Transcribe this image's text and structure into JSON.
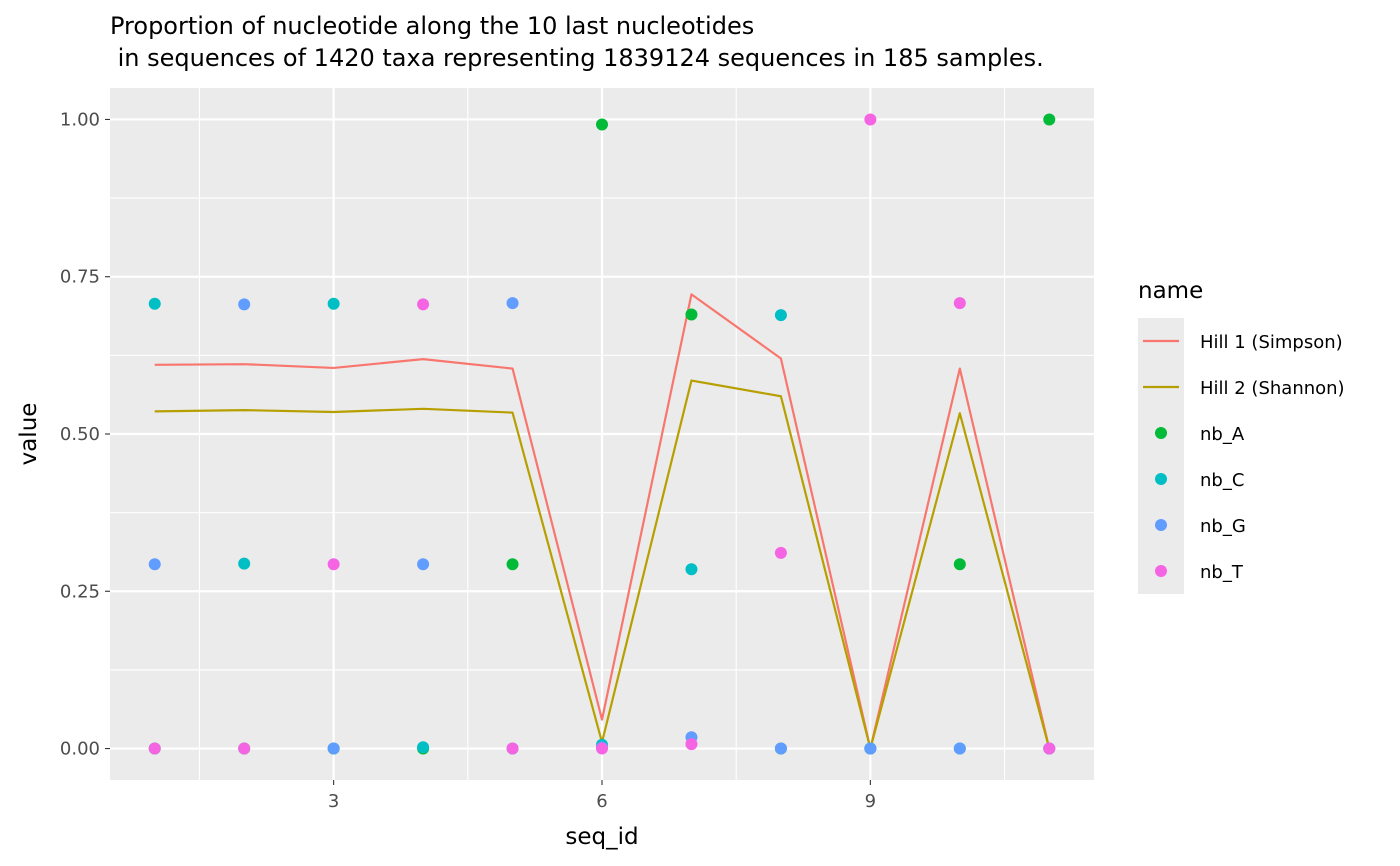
{
  "chart_data": {
    "type": "line",
    "title_line1": "Proportion of nucleotide along the 10 last nucleotides",
    "title_line2": " in sequences of 1420 taxa representing 1839124 sequences in 185 samples.",
    "xlabel": "seq_id",
    "ylabel": "value",
    "xlim": [
      0.5,
      11.5
    ],
    "ylim": [
      -0.05,
      1.05
    ],
    "x_ticks": [
      3,
      6,
      9
    ],
    "x_tick_labels": [
      "3",
      "6",
      "9"
    ],
    "y_ticks": [
      0,
      0.25,
      0.5,
      0.75,
      1.0
    ],
    "y_tick_labels": [
      "0.00",
      "0.25",
      "0.50",
      "0.75",
      "1.00"
    ],
    "grid": true,
    "legend_title": "name",
    "legend_position": "right",
    "x": [
      1,
      2,
      3,
      4,
      5,
      6,
      7,
      8,
      9,
      10,
      11
    ],
    "series": [
      {
        "name": "Hill 1 (Simpson)",
        "kind": "line",
        "color": "#F8766D",
        "values": [
          0.61,
          0.611,
          0.605,
          0.619,
          0.604,
          0.046,
          0.722,
          0.62,
          0.0,
          0.604,
          0.0
        ]
      },
      {
        "name": "Hill 2 (Shannon)",
        "kind": "line",
        "color": "#B79F00",
        "values": [
          0.536,
          0.538,
          0.535,
          0.54,
          0.534,
          0.01,
          0.585,
          0.56,
          0.0,
          0.533,
          0.0
        ]
      },
      {
        "name": "nb_A",
        "kind": "point",
        "color": "#00BA38",
        "values": [
          0.0,
          0.0,
          0.0,
          0.0,
          0.293,
          0.992,
          0.69,
          0.0,
          0.0,
          0.293,
          1.0
        ]
      },
      {
        "name": "nb_C",
        "kind": "point",
        "color": "#00BFC4",
        "values": [
          0.707,
          0.294,
          0.707,
          0.002,
          0.0,
          0.006,
          0.285,
          0.689,
          0.0,
          0.0,
          0.0
        ]
      },
      {
        "name": "nb_G",
        "kind": "point",
        "color": "#619CFF",
        "values": [
          0.293,
          0.706,
          0.0,
          0.293,
          0.708,
          0.002,
          0.018,
          0.0,
          0.0,
          0.0,
          0.0
        ]
      },
      {
        "name": "nb_T",
        "kind": "point",
        "color": "#F564E3",
        "values": [
          0.0,
          0.0,
          0.293,
          0.706,
          0.0,
          0.0,
          0.007,
          0.311,
          1.0,
          0.708,
          0.0
        ]
      }
    ]
  }
}
